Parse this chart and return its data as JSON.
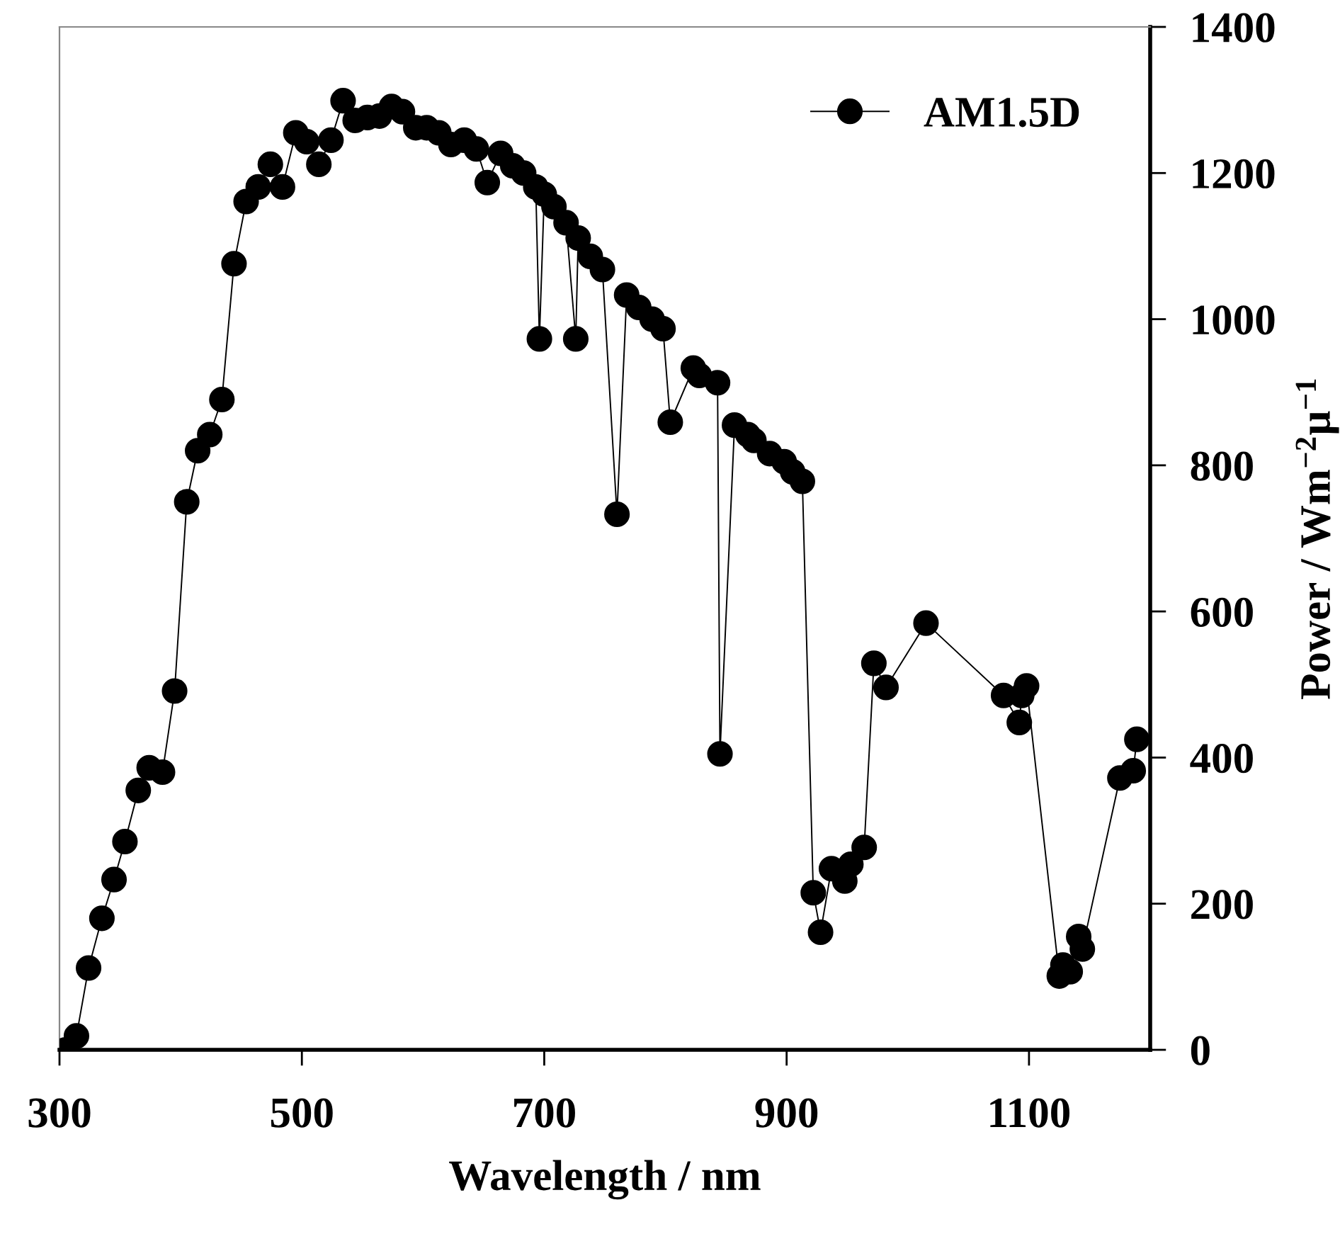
{
  "chart_data": {
    "type": "line",
    "xlabel": "Wavelength / nm",
    "ylabel": "Power / Wm$^{−2}$μ$^{−1}$",
    "x": [
      305,
      314,
      324,
      335,
      345,
      354,
      365,
      374,
      385,
      395,
      405,
      414,
      424,
      434,
      444,
      454,
      464,
      474,
      484,
      495,
      504,
      514,
      524,
      534,
      544,
      554,
      564,
      574,
      583,
      594,
      603,
      613,
      623,
      634,
      644,
      653,
      664,
      674,
      683,
      693,
      696,
      700,
      708,
      718,
      726,
      728,
      738,
      748,
      760,
      768,
      778,
      789,
      798,
      804,
      823,
      828,
      843,
      845,
      857,
      868,
      873,
      886,
      898,
      905,
      913,
      922,
      928,
      937,
      948,
      953,
      964,
      972,
      982,
      1015,
      1079,
      1092,
      1094,
      1098,
      1125,
      1128,
      1134,
      1141,
      1144,
      1175,
      1186,
      1189
    ],
    "series": [
      {
        "name": "AM1.5D",
        "color": "#000000",
        "values": [
          0,
          19,
          112,
          180,
          233,
          285,
          355,
          386,
          380,
          491,
          750,
          820,
          842,
          890,
          1076,
          1161,
          1181,
          1212,
          1181,
          1255,
          1243,
          1212,
          1245,
          1299,
          1272,
          1276,
          1278,
          1291,
          1284,
          1262,
          1262,
          1255,
          1239,
          1245,
          1233,
          1187,
          1227,
          1210,
          1200,
          1181,
          973,
          1171,
          1154,
          1132,
          973,
          1111,
          1086,
          1068,
          733,
          1033,
          1016,
          1000,
          987,
          859,
          933,
          923,
          913,
          405,
          855,
          842,
          834,
          816,
          805,
          791,
          778,
          215,
          161,
          248,
          231,
          254,
          277,
          529,
          496,
          584,
          485,
          448,
          485,
          498,
          101,
          116,
          107,
          155,
          138,
          372,
          382,
          425
        ]
      }
    ],
    "xlim": [
      300,
      1200
    ],
    "xticks": [
      300,
      500,
      700,
      900,
      1100
    ],
    "ylim": [
      0,
      1400
    ],
    "yticks": [
      0,
      200,
      400,
      600,
      800,
      1000,
      1200,
      1400
    ],
    "marker": "circle",
    "line_style": "solid",
    "legend": "top right",
    "grid": false
  }
}
